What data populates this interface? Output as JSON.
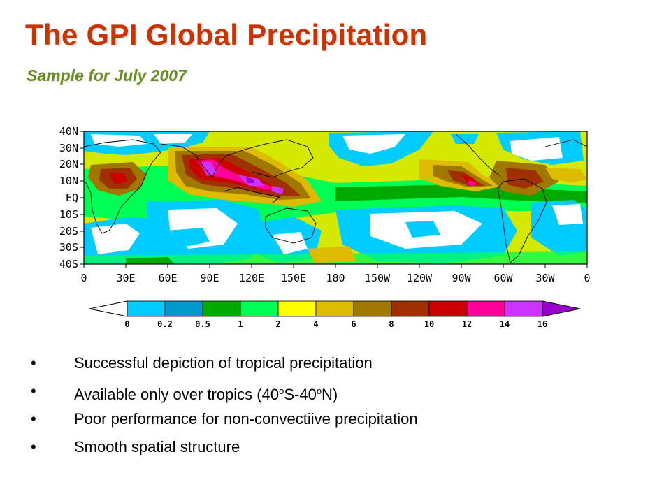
{
  "slide": {
    "title": "The GPI Global Precipitation",
    "subtitle": "Sample for July 2007"
  },
  "map": {
    "lat_labels": [
      "40N",
      "30N",
      "20N",
      "10N",
      "EQ",
      "10S",
      "20S",
      "30S",
      "40S"
    ],
    "lon_labels": [
      "0",
      "30E",
      "60E",
      "90E",
      "120E",
      "150E",
      "180",
      "150W",
      "120W",
      "90W",
      "60W",
      "30W",
      "0"
    ],
    "colorbar": {
      "levels": [
        "0",
        "0.2",
        "0.5",
        "1",
        "2",
        "4",
        "6",
        "8",
        "10",
        "12",
        "14",
        "16"
      ],
      "colors": [
        "#ffffff",
        "#00ccff",
        "#0099cc",
        "#00aa00",
        "#00ff55",
        "#ffff00",
        "#ddbb00",
        "#a07800",
        "#a03000",
        "#cc0000",
        "#ff0099",
        "#cc33ff",
        "#9900cc"
      ]
    }
  },
  "bullets": {
    "b1": "Successful depiction of tropical precipitation",
    "b2_pre": "Available only over tropics (40",
    "b2_o1": "o",
    "b2_mid": "S-40",
    "b2_o2": "o",
    "b2_post": "N)",
    "b3": "Poor performance for non-convectiive precipitation",
    "b4": "Smooth spatial structure",
    "marker": "•"
  }
}
